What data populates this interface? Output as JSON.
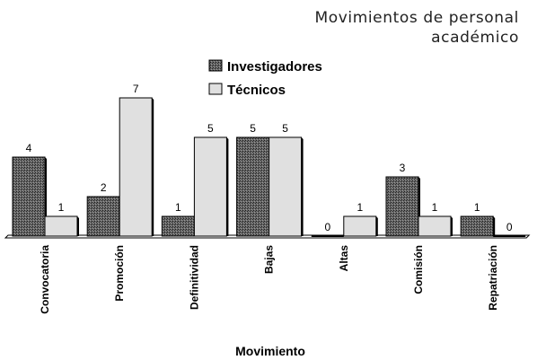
{
  "chart_data": {
    "type": "bar",
    "title_lines": [
      "Movimientos de personal",
      "académico"
    ],
    "xlabel": "Movimiento",
    "ylabel": "",
    "categories": [
      "Convocatoria",
      "Promoción",
      "Definitividad",
      "Bajas",
      "Altas",
      "Comisión",
      "Repatriación"
    ],
    "series": [
      {
        "name": "Investigadores",
        "values": [
          4,
          2,
          1,
          5,
          0,
          3,
          1
        ],
        "color": "#555555",
        "pattern": "crosshatch"
      },
      {
        "name": "Técnicos",
        "values": [
          1,
          7,
          5,
          5,
          1,
          1,
          0
        ],
        "color": "#e0e0e0",
        "pattern": "solid"
      }
    ],
    "ylim": [
      0,
      7
    ],
    "grid": false,
    "legend_position": "top-center",
    "data_labels": true
  }
}
